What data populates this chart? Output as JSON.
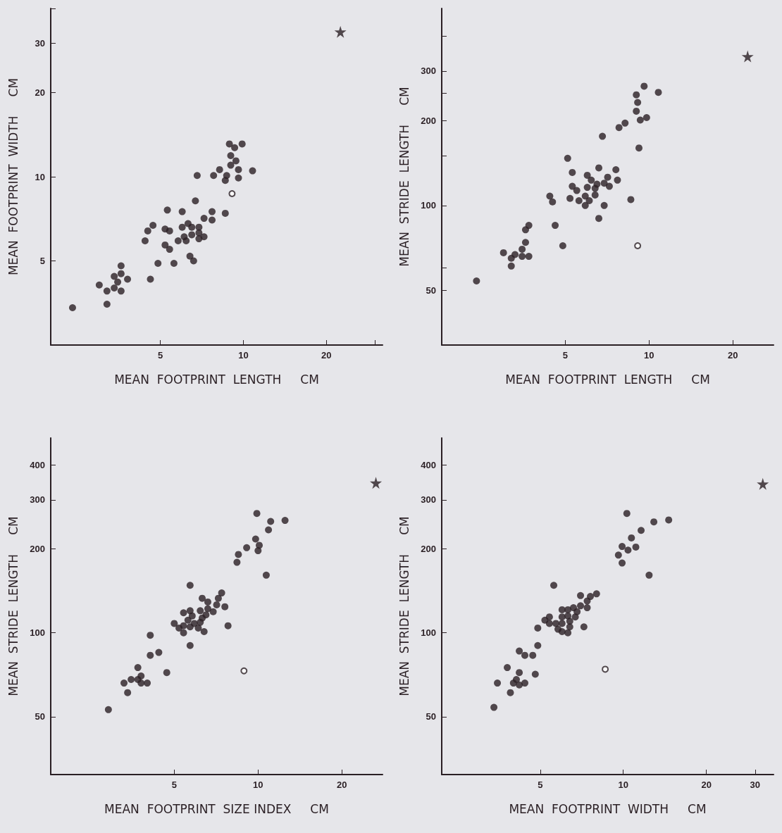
{
  "chart_data": [
    {
      "type": "scatter",
      "xlabel": "MEAN  FOOTPRINT  LENGTH     CM",
      "ylabel": "MEAN  FOOTPRINT  WIDTH     CM",
      "log": "xy",
      "grid": false,
      "xlim": [
        2,
        32
      ],
      "ylim": [
        2.5,
        40
      ],
      "xticks": [
        5,
        10,
        20,
        {
          "value": 30,
          "label": null
        }
      ],
      "yticks": [
        5,
        10,
        20,
        30,
        {
          "value": 40,
          "label": null
        }
      ],
      "series": [
        {
          "color": "#2a1f24",
          "marker": "circle",
          "x": [
            8.9,
            9.9,
            9.3,
            9.0,
            9.4,
            9.0,
            8.2,
            9.6,
            10.8,
            6.8,
            7.8,
            8.7,
            9.6,
            8.6,
            6.7,
            5.3,
            6.0,
            7.7,
            8.6,
            7.2,
            7.7,
            4.7,
            4.5,
            5.2,
            5.4,
            6.0,
            6.3,
            6.5,
            6.9,
            6.1,
            6.5,
            6.9,
            7.2,
            4.4,
            5.8,
            6.2,
            6.9,
            5.2,
            5.4,
            6.4,
            4.9,
            5.6,
            6.6,
            3.6,
            3.6,
            3.4,
            3.8,
            4.6,
            3.5,
            3.0,
            3.4,
            3.2,
            3.6,
            3.2,
            2.4
          ],
          "values": [
            13.1,
            13.1,
            12.7,
            11.9,
            11.4,
            11.0,
            10.6,
            10.6,
            10.5,
            10.1,
            10.1,
            10.1,
            9.9,
            9.7,
            8.2,
            7.6,
            7.5,
            7.5,
            7.4,
            7.1,
            7.0,
            6.7,
            6.4,
            6.5,
            6.4,
            6.6,
            6.8,
            6.6,
            6.6,
            6.1,
            6.2,
            6.3,
            6.1,
            5.9,
            5.9,
            5.9,
            6.0,
            5.7,
            5.5,
            5.2,
            4.9,
            4.9,
            5.0,
            4.8,
            4.5,
            4.4,
            4.3,
            4.3,
            4.2,
            4.1,
            4.0,
            3.9,
            3.9,
            3.5,
            3.4
          ]
        },
        {
          "color": "#2a1f24",
          "x": [
            9.1
          ],
          "values": [
            8.7
          ]
        },
        {
          "color": "#2a1f24",
          "marker": "star",
          "x": [
            22.5
          ],
          "values": [
            33
          ]
        }
      ]
    },
    {
      "type": "scatter",
      "xlabel": "MEAN  FOOTPRINT  LENGTH     CM",
      "ylabel": "MEAN  STRIDE  LENGTH     CM",
      "log": "xy",
      "grid": false,
      "xlim": [
        1.8,
        28
      ],
      "ylim": [
        32,
        500
      ],
      "xticks": [
        5,
        10,
        20
      ],
      "yticks": [
        50,
        {
          "value": 60,
          "label": null
        },
        100,
        {
          "value": 150,
          "label": null
        },
        200,
        {
          "value": 250,
          "label": null
        },
        300,
        {
          "value": 400,
          "label": null
        }
      ],
      "series": [
        {
          "color": "#2a1f24",
          "marker": "circle",
          "x": [
            9.6,
            10.8,
            9.0,
            9.1,
            9.0,
            9.3,
            9.8,
            8.2,
            7.8,
            6.8,
            9.2,
            5.1,
            6.6,
            7.6,
            5.3,
            6.0,
            7.1,
            6.2,
            7.7,
            6.5,
            6.9,
            5.3,
            6.0,
            6.4,
            7.2,
            5.5,
            4.4,
            5.2,
            5.6,
            5.9,
            6.4,
            6.1,
            8.6,
            4.5,
            5.9,
            6.9,
            6.6,
            4.6,
            3.7,
            3.6,
            3.6,
            4.9,
            3.5,
            3.0,
            3.3,
            3.2,
            3.5,
            3.7,
            3.2,
            2.4
          ],
          "values": [
            265,
            252,
            247,
            232,
            216,
            201,
            205,
            196,
            189,
            176,
            160,
            147,
            136,
            134,
            131,
            128,
            126,
            123,
            123,
            119,
            120,
            117,
            116,
            115,
            117,
            113,
            108,
            106,
            104,
            108,
            109,
            104,
            105,
            103,
            100,
            100,
            90,
            85,
            85,
            82,
            74,
            72,
            70,
            68,
            67,
            65,
            66,
            66,
            61,
            54
          ]
        },
        {
          "color": "#2a1f24",
          "x": [
            9.1
          ],
          "values": [
            72
          ]
        },
        {
          "color": "#2a1f24",
          "marker": "star",
          "x": [
            22.6
          ],
          "values": [
            338
          ]
        }
      ]
    },
    {
      "type": "scatter",
      "xlabel": "MEAN  FOOTPRINT  SIZE INDEX     CM",
      "ylabel": "MEAN  STRIDE  LENGTH     CM",
      "log": "xy",
      "grid": false,
      "xlim": [
        1.8,
        28
      ],
      "ylim": [
        31,
        500
      ],
      "xticks": [
        5,
        10,
        20
      ],
      "yticks": [
        50,
        100,
        200,
        300,
        400
      ],
      "series": [
        {
          "color": "#2a1f24",
          "marker": "circle",
          "x": [
            9.9,
            11.1,
            12.5,
            10.9,
            9.8,
            10.1,
            10.0,
            9.1,
            8.5,
            8.4,
            10.7,
            5.7,
            7.4,
            6.3,
            7.2,
            6.6,
            7.1,
            7.6,
            5.4,
            5.7,
            6.2,
            6.6,
            6.9,
            5.8,
            6.5,
            5.6,
            6.3,
            5.0,
            5.4,
            5.7,
            5.9,
            6.2,
            5.2,
            6.1,
            5.4,
            6.4,
            7.8,
            4.1,
            5.7,
            4.4,
            4.1,
            3.7,
            4.7,
            3.8,
            3.5,
            3.3,
            3.7,
            3.8,
            4.0,
            3.4,
            2.9
          ],
          "values": [
            268,
            251,
            253,
            234,
            217,
            206,
            197,
            202,
            191,
            179,
            161,
            148,
            139,
            133,
            133,
            129,
            126,
            124,
            118,
            120,
            120,
            122,
            119,
            115,
            116,
            111,
            113,
            108,
            106,
            105,
            108,
            109,
            104,
            104,
            100,
            101,
            106,
            98,
            90,
            85,
            83,
            75,
            72,
            70,
            68,
            66,
            68,
            66,
            66,
            61,
            53
          ]
        },
        {
          "color": "#2a1f24",
          "x": [
            8.9
          ],
          "values": [
            73
          ]
        },
        {
          "color": "#2a1f24",
          "marker": "star",
          "x": [
            26.5
          ],
          "values": [
            345
          ]
        }
      ]
    },
    {
      "type": "scatter",
      "xlabel": "MEAN  FOOTPRINT  WIDTH     CM",
      "ylabel": "MEAN  STRIDE  LENGTH     CM",
      "log": "xy",
      "grid": false,
      "xlim": [
        2.2,
        35
      ],
      "ylim": [
        31,
        500
      ],
      "xticks": [
        5,
        10,
        20,
        30
      ],
      "yticks": [
        50,
        100,
        200,
        300,
        400
      ],
      "series": [
        {
          "color": "#2a1f24",
          "marker": "circle",
          "x": [
            10.3,
            12.9,
            14.6,
            11.6,
            10.7,
            9.9,
            10.4,
            11.1,
            9.6,
            9.9,
            12.4,
            5.6,
            8.0,
            7.6,
            7.0,
            7.4,
            7.0,
            7.4,
            6.6,
            6.3,
            6.0,
            6.8,
            5.4,
            6.0,
            6.3,
            6.7,
            5.2,
            6.4,
            5.4,
            5.7,
            6.0,
            6.4,
            5.8,
            6.0,
            6.3,
            4.9,
            7.2,
            4.9,
            4.2,
            4.4,
            4.7,
            3.8,
            4.2,
            4.8,
            4.1,
            3.5,
            4.0,
            4.4,
            4.2,
            3.9,
            3.4
          ],
          "values": [
            268,
            250,
            254,
            233,
            219,
            204,
            198,
            203,
            190,
            178,
            161,
            148,
            138,
            135,
            136,
            130,
            125,
            123,
            123,
            121,
            121,
            119,
            114,
            114,
            115,
            114,
            111,
            110,
            108,
            108,
            108,
            105,
            103,
            101,
            100,
            104,
            105,
            90,
            86,
            83,
            83,
            75,
            72,
            71,
            68,
            66,
            66,
            66,
            65,
            61,
            54
          ]
        },
        {
          "color": "#2a1f24",
          "x": [
            8.6
          ],
          "values": [
            74
          ]
        },
        {
          "color": "#2a1f24",
          "marker": "star",
          "x": [
            32.0
          ],
          "values": [
            342
          ]
        }
      ]
    }
  ]
}
